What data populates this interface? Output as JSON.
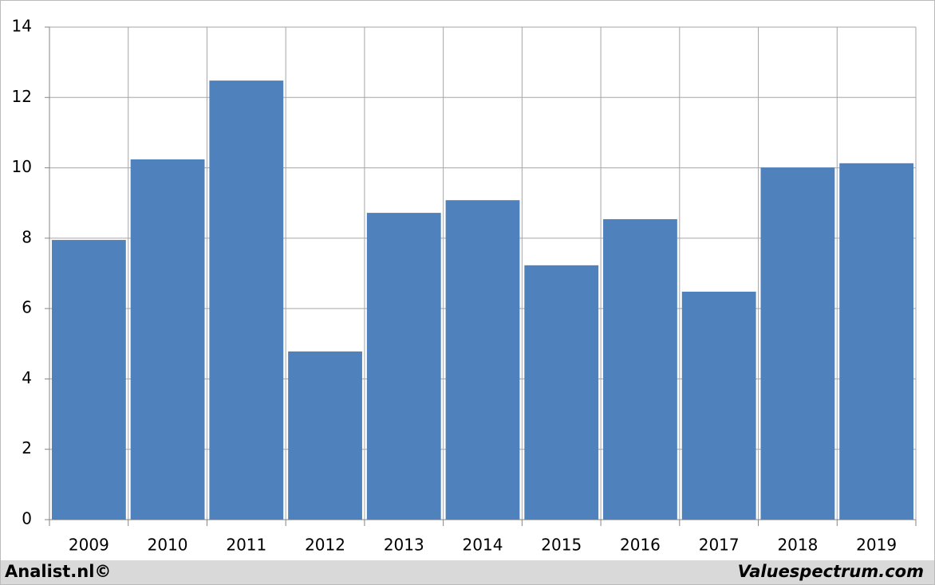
{
  "chart_data": {
    "type": "bar",
    "categories": [
      "2009",
      "2010",
      "2011",
      "2012",
      "2013",
      "2014",
      "2015",
      "2016",
      "2017",
      "2018",
      "2019"
    ],
    "values": [
      7.95,
      10.24,
      12.48,
      4.78,
      8.72,
      9.08,
      7.23,
      8.54,
      6.48,
      10.01,
      10.13
    ],
    "color": "#4f81bd",
    "ylim": [
      0,
      14
    ],
    "yticks": [
      0,
      2,
      4,
      6,
      8,
      10,
      12,
      14
    ],
    "grid": true
  },
  "footer": {
    "left": "Analist.nl©",
    "right": "Valuespectrum.com"
  }
}
